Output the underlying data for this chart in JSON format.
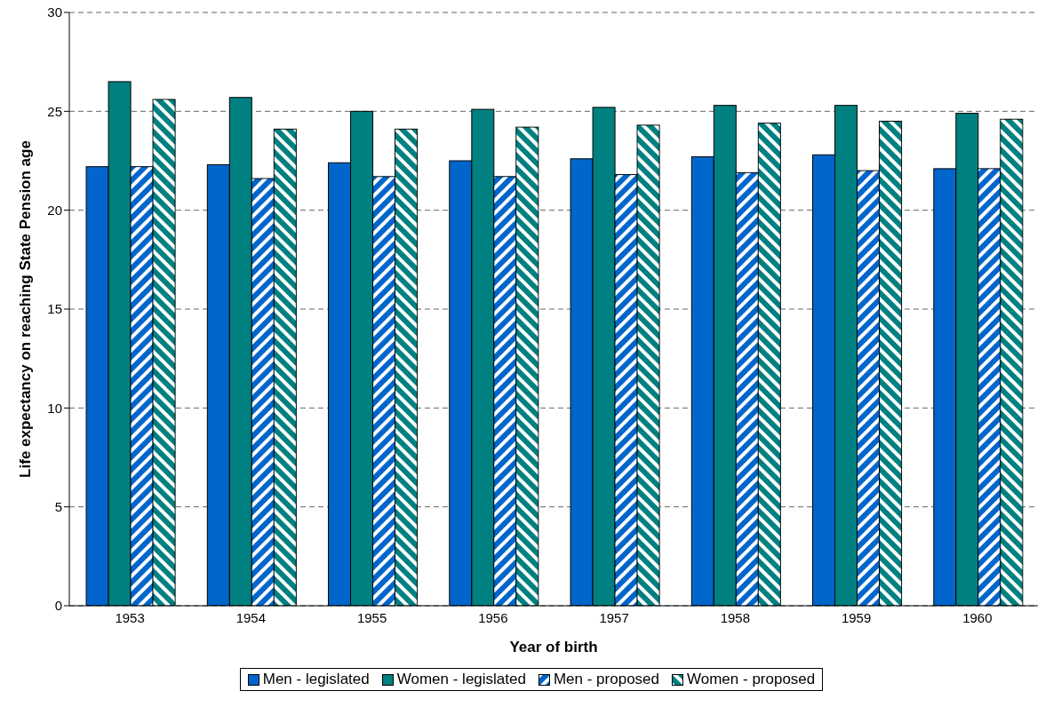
{
  "chart_data": {
    "type": "bar",
    "xlabel": "Year of birth",
    "ylabel": "Life expectancy on reaching State Pension age",
    "categories": [
      "1953",
      "1954",
      "1955",
      "1956",
      "1957",
      "1958",
      "1959",
      "1960"
    ],
    "series": [
      {
        "name": "Men - legislated",
        "color": "#0066cc",
        "values": [
          22.2,
          22.3,
          22.4,
          22.5,
          22.6,
          22.7,
          22.8,
          22.1
        ]
      },
      {
        "name": "Women - legislated",
        "color": "#008080",
        "values": [
          26.5,
          25.7,
          25.0,
          25.1,
          25.2,
          25.3,
          25.3,
          24.9
        ]
      },
      {
        "name": "Men - proposed",
        "color": "#0066cc",
        "values": [
          22.2,
          21.6,
          21.7,
          21.7,
          21.8,
          21.9,
          22.0,
          22.1
        ]
      },
      {
        "name": "Women - proposed",
        "color": "#008080",
        "values": [
          25.6,
          24.1,
          24.1,
          24.2,
          24.3,
          24.4,
          24.5,
          24.6
        ]
      }
    ],
    "ylim": [
      0,
      30
    ],
    "yticks": [
      0,
      5,
      10,
      15,
      20,
      25,
      30
    ],
    "grid": "y",
    "legend": "bottom"
  }
}
